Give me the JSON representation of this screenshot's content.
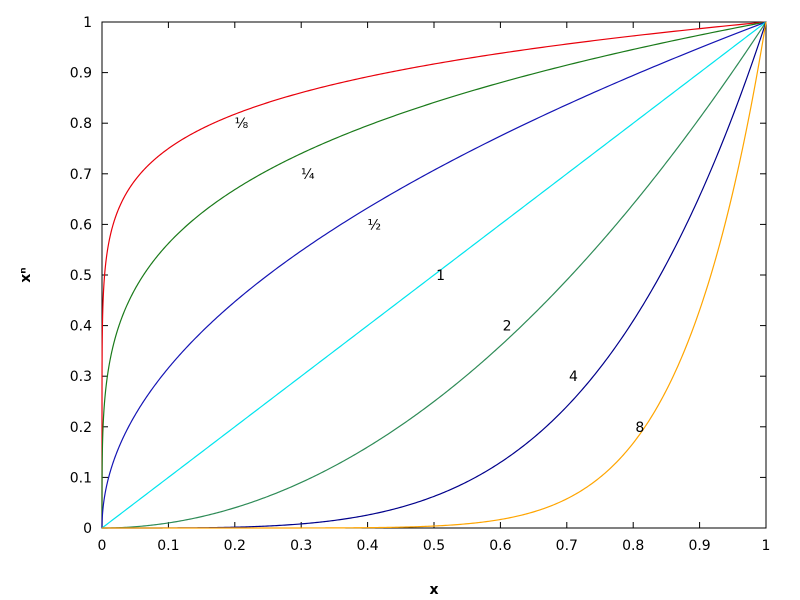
{
  "chart_data": {
    "type": "line",
    "title": "",
    "xlabel": "x",
    "ylabel": "xⁿ",
    "xlim": [
      0,
      1
    ],
    "ylim": [
      0,
      1
    ],
    "grid": false,
    "x_ticks": [
      "0",
      "0.1",
      "0.2",
      "0.3",
      "0.4",
      "0.5",
      "0.6",
      "0.7",
      "0.8",
      "0.9",
      "1"
    ],
    "y_ticks": [
      "0",
      "0.1",
      "0.2",
      "0.3",
      "0.4",
      "0.5",
      "0.6",
      "0.7",
      "0.8",
      "0.9",
      "1"
    ],
    "series": [
      {
        "name": "⅛",
        "exponent": 0.125,
        "color": "#e8000b",
        "label_at": [
          0.21,
          0.8
        ]
      },
      {
        "name": "¼",
        "exponent": 0.25,
        "color": "#1a7a1a",
        "label_at": [
          0.31,
          0.7
        ]
      },
      {
        "name": "½",
        "exponent": 0.5,
        "color": "#1414b4",
        "label_at": [
          0.41,
          0.6
        ]
      },
      {
        "name": "1",
        "exponent": 1,
        "color": "#00e5ee",
        "label_at": [
          0.51,
          0.5
        ]
      },
      {
        "name": "2",
        "exponent": 2,
        "color": "#2e8b57",
        "label_at": [
          0.61,
          0.4
        ]
      },
      {
        "name": "4",
        "exponent": 4,
        "color": "#00008b",
        "label_at": [
          0.71,
          0.3
        ]
      },
      {
        "name": "8",
        "exponent": 8,
        "color": "#ffa500",
        "label_at": [
          0.81,
          0.2
        ]
      }
    ]
  }
}
